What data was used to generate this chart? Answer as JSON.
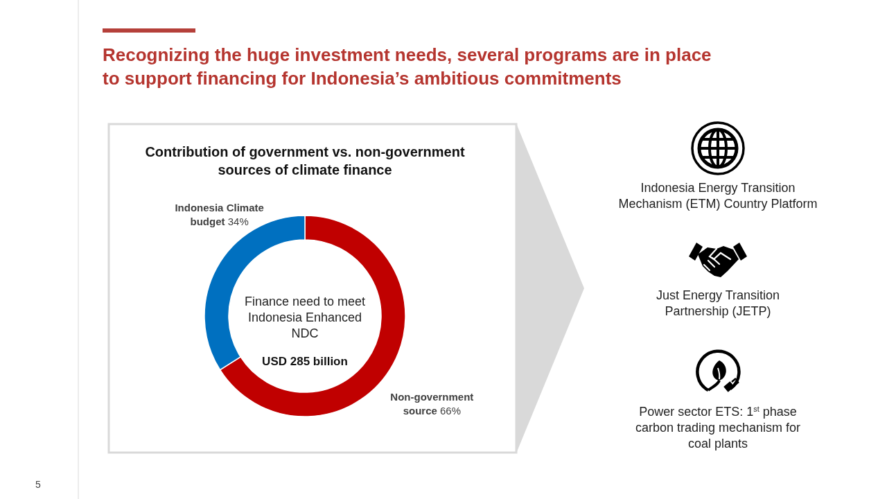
{
  "chart_data": [
    {
      "type": "donut",
      "title": "Contribution of government vs. non-government sources of climate finance",
      "categories": [
        "Non-government source",
        "Indonesia Climate budget"
      ],
      "values": [
        66,
        34
      ],
      "colors": [
        "#c00000",
        "#0070c0"
      ],
      "value_labels": [
        "66%",
        "34%"
      ],
      "annotations": [
        "Recognizing the huge investment needs, several programs are in place to support financing for Indonesia’s ambitious commitments",
        "Finance need to meet Indonesia Enhanced NDC",
        "USD 285 billion",
        "5"
      ]
    },
    {
      "type": "other",
      "annotations": [
        "Indonesia Energy Transition Mechanism (ETM) Country Platform",
        "Just Energy Transition Partnership (JETP)",
        "Power sector ETS: 1$^{st}$ phase carbon trading mechanism for coal plants"
      ]
    }
  ]
}
